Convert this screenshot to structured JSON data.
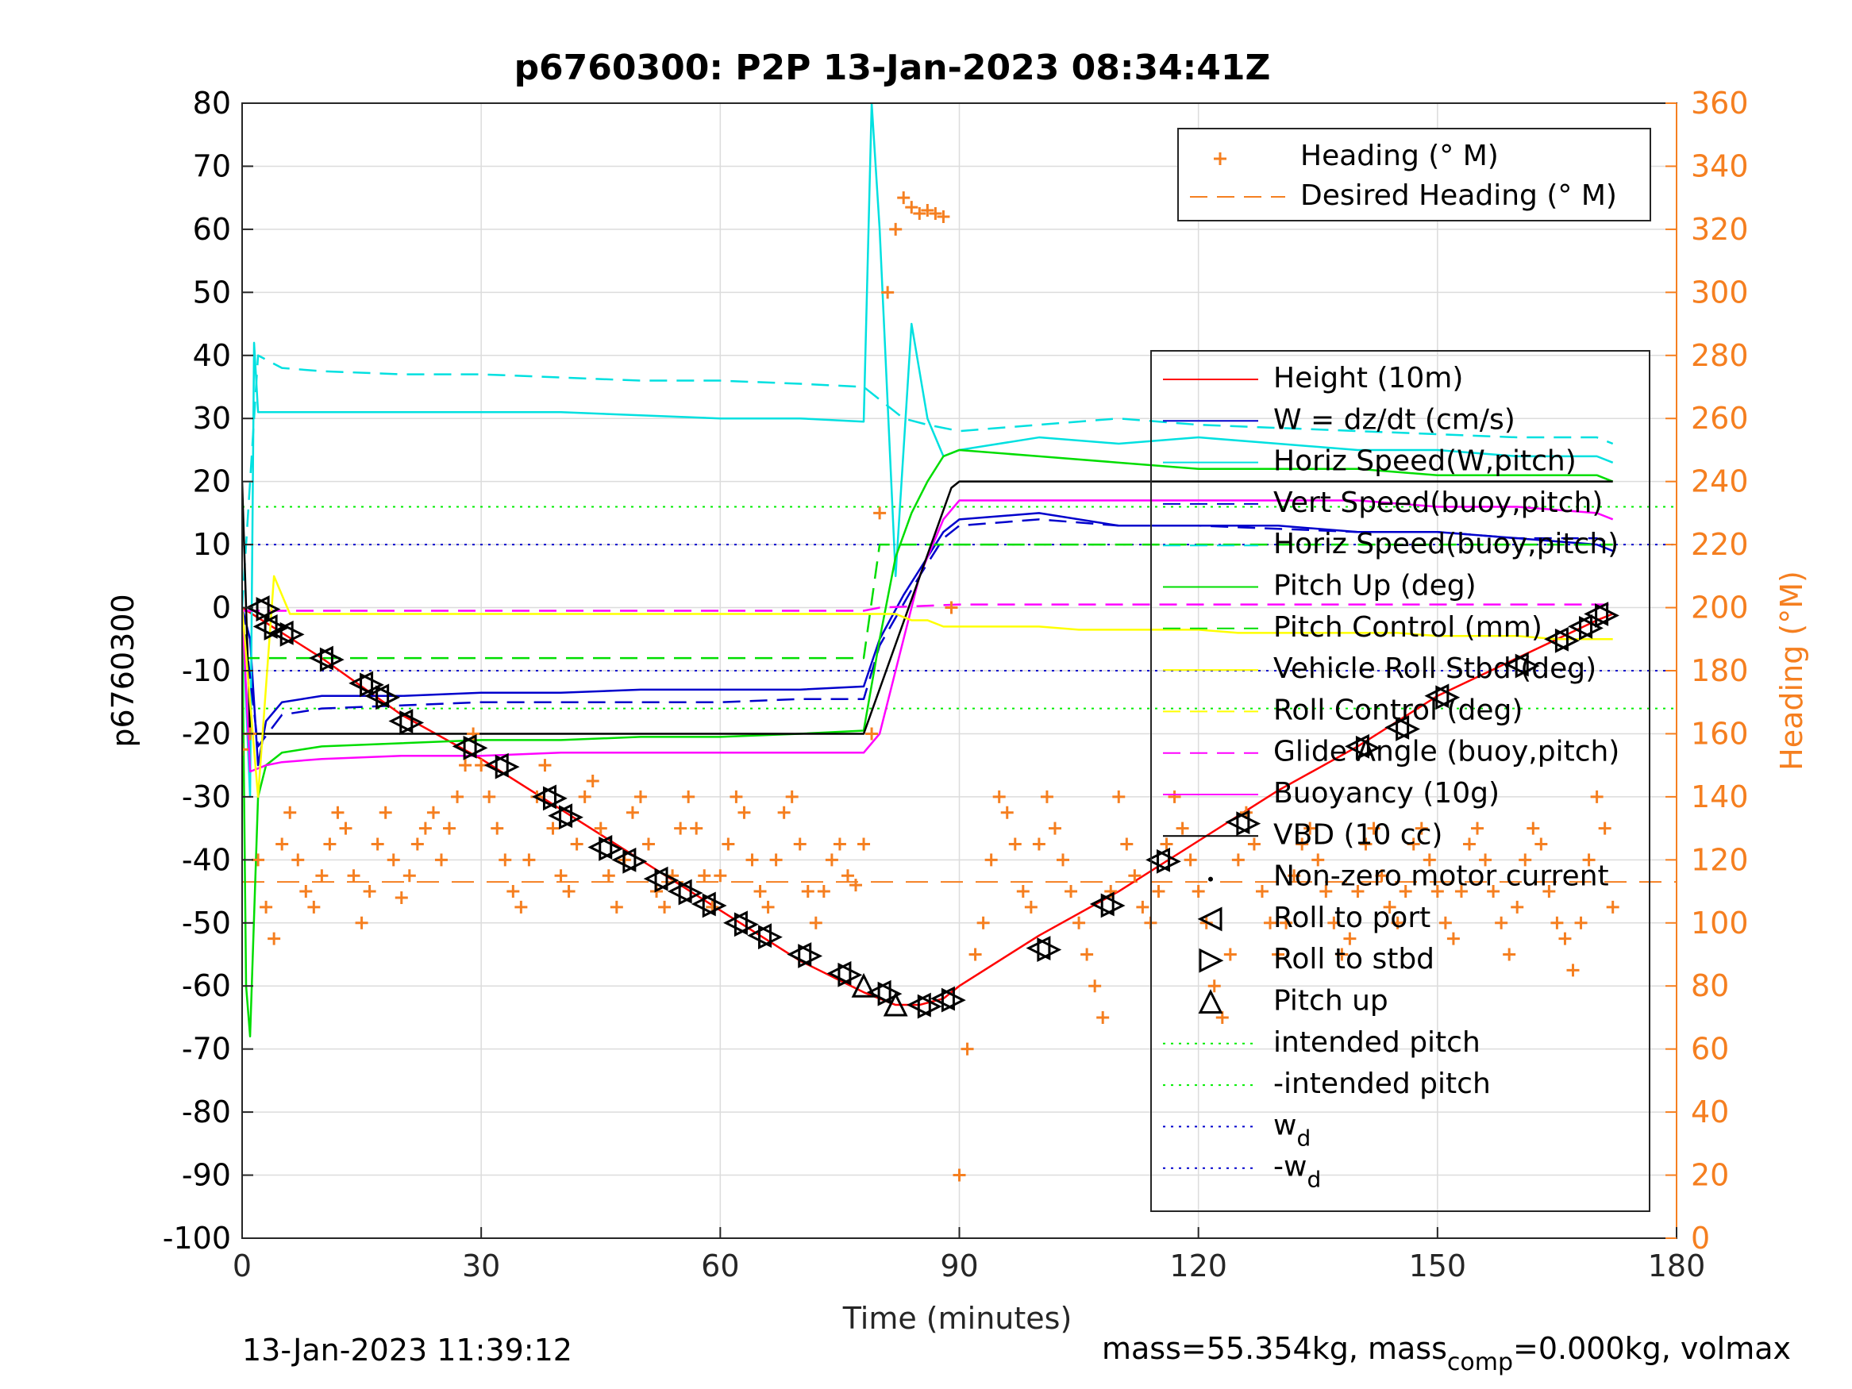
{
  "footer": {
    "timestamp": "13-Jan-2023 11:39:12",
    "mass_text": "mass=55.354kg, mass",
    "mass_sub": "comp",
    "mass_tail": "=0.000kg, volmax"
  },
  "chart_data": {
    "type": "line",
    "title": "p6760300: P2P 13-Jan-2023 08:34:41Z",
    "xlabel": "Time (minutes)",
    "ylabel": "p6760300",
    "ylabel_right": "Heading (°M)",
    "xlim": [
      0,
      180
    ],
    "ylim": [
      -100,
      80
    ],
    "ylim_right": [
      0,
      360
    ],
    "xticks": [
      0,
      30,
      60,
      90,
      120,
      150,
      180
    ],
    "yticks": [
      -100,
      -90,
      -80,
      -70,
      -60,
      -50,
      -40,
      -30,
      -20,
      -10,
      0,
      10,
      20,
      30,
      40,
      50,
      60,
      70,
      80
    ],
    "yticks_right": [
      0,
      20,
      40,
      60,
      80,
      100,
      120,
      140,
      160,
      180,
      200,
      220,
      240,
      260,
      280,
      300,
      320,
      340,
      360
    ],
    "grid": true,
    "colors": {
      "heading": "#f57f20",
      "height": "#ff0000",
      "w": "#0000cc",
      "horiz_w": "#00e0e0",
      "pitch": "#00dd00",
      "roll": "#ffff00",
      "glide": "#ff00ff",
      "vbd": "#000000"
    },
    "legend_heading": {
      "position": "top-right",
      "entries": [
        {
          "label": "Heading (° M)",
          "color": "#f57f20",
          "style": "plus"
        },
        {
          "label": "Desired Heading (° M)",
          "color": "#f57f20",
          "style": "dash"
        }
      ]
    },
    "legend_main": {
      "position": "right",
      "entries": [
        {
          "label": "Height (10m)",
          "color": "#ff0000",
          "style": "solid"
        },
        {
          "label": "W = dz/dt (cm/s)",
          "color": "#0000cc",
          "style": "solid"
        },
        {
          "label": "Horiz Speed(W,pitch)",
          "color": "#00e0e0",
          "style": "solid"
        },
        {
          "label": "Vert Speed(buoy,pitch)",
          "color": "#0000cc",
          "style": "dash"
        },
        {
          "label": "Horiz Speed(buoy,pitch)",
          "color": "#00e0e0",
          "style": "dash"
        },
        {
          "label": "Pitch Up (deg)",
          "color": "#00dd00",
          "style": "solid"
        },
        {
          "label": "Pitch Control (mm)",
          "color": "#00dd00",
          "style": "dash"
        },
        {
          "label": "Vehicle Roll Stbd (deg)",
          "color": "#ffff00",
          "style": "solid"
        },
        {
          "label": "Roll Control (deg)",
          "color": "#ffff00",
          "style": "dash"
        },
        {
          "label": "Glide Angle (buoy,pitch)",
          "color": "#ff00ff",
          "style": "dash"
        },
        {
          "label": "Buoyancy (10g)",
          "color": "#ff00ff",
          "style": "solid"
        },
        {
          "label": "VBD (10 cc)",
          "color": "#000000",
          "style": "solid"
        },
        {
          "label": "Non-zero motor current",
          "color": "#000000",
          "style": "dot"
        },
        {
          "label": "Roll to port",
          "color": "#000000",
          "style": "tri-left"
        },
        {
          "label": "Roll to stbd",
          "color": "#000000",
          "style": "tri-right"
        },
        {
          "label": "Pitch up",
          "color": "#000000",
          "style": "tri-up"
        },
        {
          "label": "intended pitch",
          "color": "#00ee00",
          "style": "dotted"
        },
        {
          "label": "-intended pitch",
          "color": "#00ee00",
          "style": "dotted"
        },
        {
          "label": "w",
          "sub": "d",
          "color": "#0000cc",
          "style": "dotted"
        },
        {
          "label": "-w",
          "sub": "d",
          "color": "#0000cc",
          "style": "dotted"
        }
      ]
    },
    "reference_lines": [
      {
        "name": "intended pitch",
        "y": 16
      },
      {
        "name": "-intended pitch",
        "y": -16
      },
      {
        "name": "w_d",
        "y": 10
      },
      {
        "name": "-w_d",
        "y": -10
      },
      {
        "name": "desired heading",
        "y_right": 113
      }
    ],
    "series": [
      {
        "name": "Height (10m)",
        "x": [
          0,
          10,
          20,
          30,
          40,
          50,
          60,
          70,
          78,
          82,
          85,
          88,
          90,
          100,
          110,
          120,
          130,
          140,
          150,
          160,
          170,
          172
        ],
        "y": [
          0,
          -8,
          -17,
          -24,
          -32,
          -40,
          -48,
          -56,
          -61,
          -63,
          -63,
          -62,
          -60,
          -52,
          -45,
          -37,
          -29,
          -22,
          -14,
          -8,
          -2,
          -1
        ]
      },
      {
        "name": "W = dz/dt (cm/s)",
        "x": [
          0,
          1,
          2,
          3,
          5,
          10,
          20,
          30,
          40,
          50,
          60,
          70,
          78,
          80,
          83,
          86,
          88,
          90,
          100,
          110,
          120,
          130,
          140,
          150,
          160,
          170,
          172
        ],
        "y": [
          0,
          -5,
          -25,
          -18,
          -15,
          -14,
          -14,
          -13.5,
          -13.5,
          -13,
          -13,
          -13,
          -12.5,
          -5,
          2,
          8,
          12,
          14,
          15,
          13,
          13,
          13,
          12,
          12,
          11,
          10,
          9
        ]
      },
      {
        "name": "Horiz Speed(W,pitch)",
        "x": [
          0,
          1,
          1.5,
          2,
          5,
          10,
          20,
          30,
          40,
          50,
          60,
          70,
          78,
          79,
          80,
          82,
          84,
          86,
          88,
          90,
          100,
          110,
          120,
          130,
          140,
          150,
          160,
          170,
          172
        ],
        "y": [
          0,
          -30,
          42,
          31,
          31,
          31,
          31,
          31,
          31,
          30.5,
          30,
          30,
          29.5,
          80,
          60,
          5,
          45,
          30,
          24,
          25,
          27,
          26,
          27,
          26,
          25,
          25,
          24,
          24,
          23
        ]
      },
      {
        "name": "Vert Speed(buoy,pitch)",
        "x": [
          0,
          2,
          5,
          10,
          20,
          30,
          40,
          50,
          60,
          70,
          78,
          80,
          85,
          88,
          90,
          100,
          110,
          120,
          130,
          140,
          150,
          160,
          170,
          172
        ],
        "y": [
          0,
          -22,
          -17,
          -16,
          -15.5,
          -15,
          -15,
          -15,
          -15,
          -14.5,
          -14.5,
          -6,
          5,
          11,
          13,
          14,
          13,
          13,
          12.5,
          12,
          12,
          11,
          11,
          10
        ]
      },
      {
        "name": "Horiz Speed(buoy,pitch)",
        "x": [
          0,
          2,
          5,
          10,
          20,
          30,
          40,
          50,
          60,
          70,
          78,
          80,
          83,
          86,
          90,
          100,
          110,
          120,
          130,
          140,
          150,
          160,
          170,
          172
        ],
        "y": [
          0,
          40,
          38,
          37.5,
          37,
          37,
          36.5,
          36,
          36,
          35.5,
          35,
          33,
          30,
          29,
          28,
          29,
          30,
          29,
          28.5,
          28,
          27.5,
          27,
          27,
          26
        ]
      },
      {
        "name": "Pitch Up (deg)",
        "x": [
          0,
          0.5,
          1,
          2,
          3,
          5,
          10,
          20,
          30,
          40,
          50,
          60,
          70,
          78,
          80,
          82,
          84,
          86,
          88,
          90,
          100,
          110,
          120,
          130,
          140,
          150,
          160,
          170,
          172
        ],
        "y": [
          0,
          -60,
          -68,
          -30,
          -25,
          -23,
          -22,
          -21.5,
          -21,
          -21,
          -20.5,
          -20.5,
          -20,
          -19.5,
          -5,
          8,
          15,
          20,
          24,
          25,
          24,
          23,
          22,
          22,
          22,
          21,
          21,
          21,
          20
        ]
      },
      {
        "name": "Pitch Control (mm)",
        "x": [
          0,
          78,
          80,
          172
        ],
        "y": [
          -8,
          -8,
          10,
          10
        ]
      },
      {
        "name": "Glide Angle (buoy,pitch)",
        "x": [
          0,
          78,
          80,
          90,
          172
        ],
        "y": [
          -0.5,
          -0.5,
          0,
          0.5,
          0.5
        ]
      },
      {
        "name": "Buoyancy (10g)",
        "x": [
          0,
          1,
          3,
          5,
          10,
          20,
          30,
          40,
          50,
          60,
          70,
          78,
          80,
          85,
          88,
          90,
          100,
          110,
          120,
          130,
          140,
          150,
          160,
          170,
          172
        ],
        "y": [
          0,
          -26,
          -25,
          -24.5,
          -24,
          -23.5,
          -23.5,
          -23,
          -23,
          -23,
          -23,
          -23,
          -20,
          5,
          14,
          17,
          17,
          17,
          17,
          17,
          17,
          16,
          16,
          15,
          14
        ]
      },
      {
        "name": "VBD (10 cc)",
        "x": [
          0,
          1,
          78,
          89,
          90,
          172
        ],
        "y": [
          20,
          -20,
          -20,
          19,
          20,
          20
        ]
      },
      {
        "name": "Vehicle Roll Stbd (deg)",
        "x": [
          0,
          2,
          4,
          6,
          8,
          10,
          12,
          14,
          16,
          18,
          20,
          22,
          24,
          26,
          28,
          30,
          35,
          40,
          45,
          50,
          55,
          60,
          65,
          70,
          75,
          78,
          80,
          82,
          84,
          86,
          88,
          90,
          95,
          100,
          105,
          110,
          115,
          120,
          125,
          130,
          135,
          140,
          145,
          150,
          155,
          160,
          165,
          170,
          172
        ],
        "y": [
          0,
          -30,
          5,
          -1,
          -1,
          -1,
          -1,
          -1,
          -1,
          -1,
          -1,
          -1,
          -1,
          -1,
          -1,
          -1,
          -1,
          -1,
          -1,
          -1,
          -1,
          -1,
          -1,
          -1,
          -1,
          -1,
          -1,
          -1,
          -2,
          -2,
          -3,
          -3,
          -3,
          -3,
          -3.5,
          -3.5,
          -3.5,
          -3.5,
          -4,
          -4,
          -4,
          -4,
          -4,
          -4.5,
          -4.5,
          -4.5,
          -5,
          -5,
          -5
        ]
      }
    ],
    "heading_series": {
      "name": "Heading (° M)",
      "x": [
        0,
        1,
        2,
        3,
        4,
        5,
        6,
        7,
        8,
        9,
        10,
        11,
        12,
        13,
        14,
        15,
        16,
        17,
        18,
        19,
        20,
        21,
        22,
        23,
        24,
        25,
        26,
        27,
        28,
        29,
        30,
        31,
        32,
        33,
        34,
        35,
        36,
        37,
        38,
        39,
        40,
        41,
        42,
        43,
        44,
        45,
        46,
        47,
        48,
        49,
        50,
        51,
        52,
        53,
        54,
        55,
        56,
        57,
        58,
        59,
        60,
        61,
        62,
        63,
        64,
        65,
        66,
        67,
        68,
        69,
        70,
        71,
        72,
        73,
        74,
        75,
        76,
        77,
        78,
        79,
        80,
        81,
        82,
        83,
        84,
        85,
        86,
        87,
        88,
        89,
        90,
        91,
        92,
        93,
        94,
        95,
        96,
        97,
        98,
        99,
        100,
        101,
        102,
        103,
        104,
        105,
        106,
        107,
        108,
        109,
        110,
        111,
        112,
        113,
        114,
        115,
        116,
        117,
        118,
        119,
        120,
        121,
        122,
        123,
        124,
        125,
        126,
        127,
        128,
        129,
        130,
        131,
        132,
        133,
        134,
        135,
        136,
        137,
        138,
        139,
        140,
        141,
        142,
        143,
        144,
        145,
        146,
        147,
        148,
        149,
        150,
        151,
        152,
        153,
        154,
        155,
        156,
        157,
        158,
        159,
        160,
        161,
        162,
        163,
        164,
        165,
        166,
        167,
        168,
        169,
        170,
        171,
        172
      ],
      "y": [
        155,
        160,
        120,
        105,
        95,
        125,
        135,
        120,
        110,
        105,
        115,
        125,
        135,
        130,
        115,
        100,
        110,
        125,
        135,
        120,
        108,
        115,
        125,
        130,
        135,
        120,
        130,
        140,
        150,
        160,
        150,
        140,
        130,
        120,
        110,
        105,
        120,
        140,
        150,
        130,
        115,
        110,
        125,
        140,
        145,
        130,
        115,
        105,
        120,
        135,
        140,
        125,
        110,
        105,
        115,
        130,
        140,
        130,
        115,
        105,
        115,
        125,
        140,
        135,
        120,
        110,
        105,
        120,
        135,
        140,
        125,
        110,
        100,
        110,
        120,
        125,
        115,
        112,
        125,
        160,
        230,
        300,
        320,
        330,
        327,
        325,
        326,
        325,
        324,
        200,
        20,
        60,
        90,
        100,
        120,
        140,
        135,
        125,
        110,
        105,
        125,
        140,
        130,
        120,
        110,
        100,
        90,
        80,
        70,
        110,
        140,
        125,
        115,
        105,
        100,
        110,
        125,
        140,
        130,
        120,
        110,
        100,
        80,
        70,
        90,
        120,
        135,
        125,
        110,
        100,
        90,
        100,
        115,
        125,
        130,
        120,
        110,
        100,
        90,
        95,
        110,
        125,
        130,
        115,
        105,
        100,
        110,
        125,
        130,
        120,
        110,
        100,
        95,
        110,
        125,
        130,
        120,
        110,
        100,
        90,
        105,
        120,
        130,
        125,
        110,
        100,
        95,
        85,
        100,
        120,
        140,
        130,
        105
      ]
    },
    "roll_port_markers": {
      "x": [
        2,
        3,
        5,
        10,
        15,
        17,
        20,
        28,
        32,
        38,
        40,
        45,
        48,
        52,
        55,
        58,
        62,
        65,
        70,
        75,
        80,
        85,
        88,
        100,
        108,
        115,
        125,
        140,
        145,
        150,
        160,
        165,
        168,
        170
      ],
      "y": [
        0,
        -3,
        -4,
        -8,
        -12,
        -14,
        -18,
        -22,
        -25,
        -30,
        -33,
        -38,
        -40,
        -43,
        -45,
        -47,
        -50,
        -52,
        -55,
        -58,
        -61,
        -63,
        -62,
        -54,
        -47,
        -40,
        -34,
        -22,
        -19,
        -14,
        -9,
        -5,
        -3,
        -1
      ]
    },
    "pitch_up_markers": {
      "x": [
        78,
        82
      ],
      "y": [
        -60,
        -63
      ]
    }
  }
}
